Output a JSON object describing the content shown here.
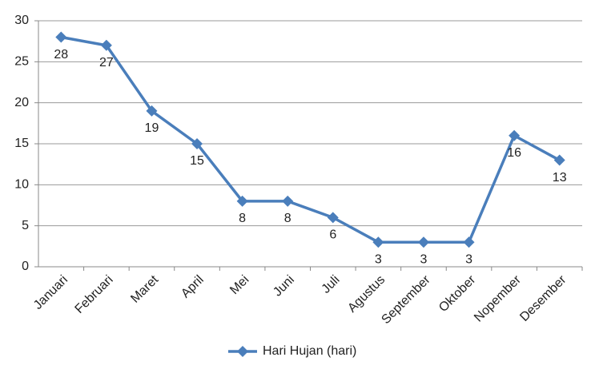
{
  "chart_data": {
    "type": "line",
    "categories": [
      "Januari",
      "Februari",
      "Maret",
      "April",
      "Mei",
      "Juni",
      "Juli",
      "Agustus",
      "September",
      "Oktober",
      "Nopember",
      "Desember"
    ],
    "series": [
      {
        "name": "Hari Hujan (hari)",
        "color": "#4a7ebb",
        "values": [
          28,
          27,
          19,
          15,
          8,
          8,
          6,
          3,
          3,
          3,
          16,
          13
        ]
      }
    ],
    "ylim": [
      0,
      30
    ],
    "yticks": [
      0,
      5,
      10,
      15,
      20,
      25,
      30
    ],
    "grid": true,
    "legend": "bottom",
    "data_labels": true
  }
}
